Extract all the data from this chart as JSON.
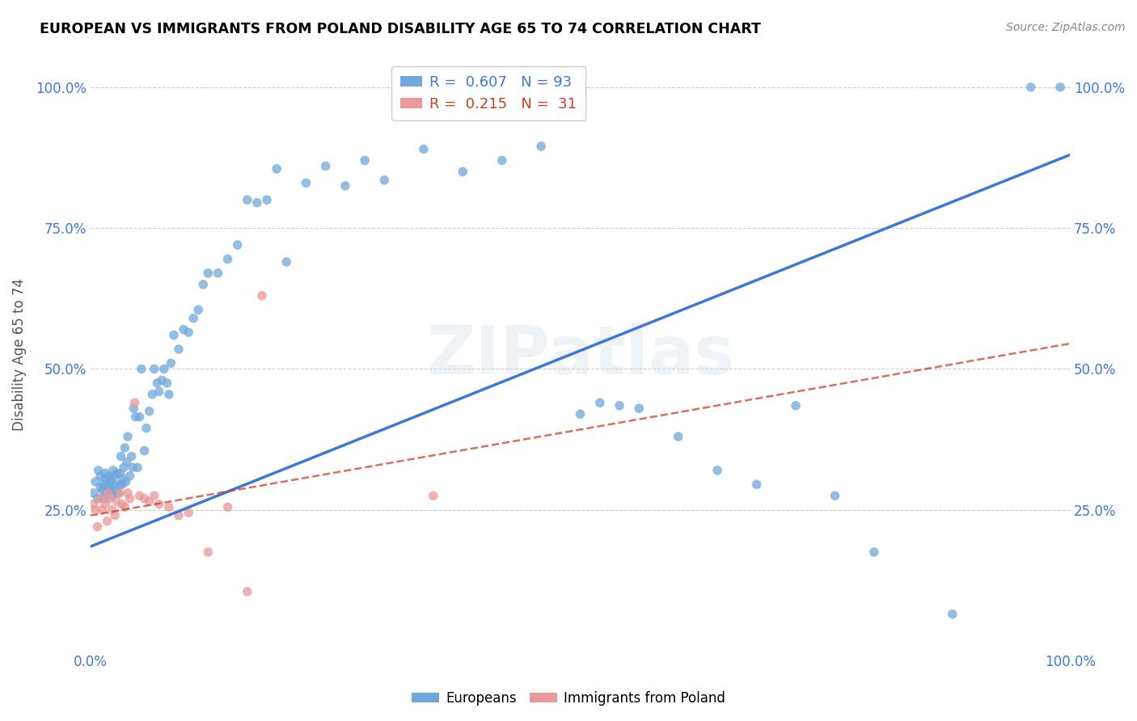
{
  "title": "EUROPEAN VS IMMIGRANTS FROM POLAND DISABILITY AGE 65 TO 74 CORRELATION CHART",
  "source": "Source: ZipAtlas.com",
  "ylabel": "Disability Age 65 to 74",
  "xlim": [
    0,
    1
  ],
  "ylim": [
    0,
    1.05
  ],
  "xticks": [
    0,
    0.25,
    0.5,
    0.75,
    1.0
  ],
  "xticklabels": [
    "0.0%",
    "",
    "",
    "",
    "100.0%"
  ],
  "yticks": [
    0.25,
    0.5,
    0.75,
    1.0
  ],
  "yticklabels": [
    "25.0%",
    "50.0%",
    "75.0%",
    "100.0%"
  ],
  "legend_labels": [
    "Europeans",
    "Immigrants from Poland"
  ],
  "blue_color": "#6fa8dc",
  "pink_color": "#ea9999",
  "trendline_blue_color": "#3c78d8",
  "trendline_pink_color": "#cc4125",
  "watermark": "ZIPatlas",
  "R_blue": 0.607,
  "N_blue": 93,
  "R_pink": 0.215,
  "N_pink": 31,
  "blue_x": [
    0.003,
    0.005,
    0.007,
    0.008,
    0.01,
    0.01,
    0.012,
    0.013,
    0.014,
    0.015,
    0.015,
    0.016,
    0.017,
    0.018,
    0.019,
    0.02,
    0.02,
    0.021,
    0.022,
    0.023,
    0.024,
    0.025,
    0.025,
    0.027,
    0.028,
    0.03,
    0.03,
    0.031,
    0.032,
    0.033,
    0.034,
    0.035,
    0.036,
    0.037,
    0.038,
    0.04,
    0.042,
    0.043,
    0.044,
    0.046,
    0.048,
    0.05,
    0.052,
    0.055,
    0.057,
    0.06,
    0.063,
    0.065,
    0.068,
    0.07,
    0.073,
    0.075,
    0.078,
    0.08,
    0.082,
    0.085,
    0.09,
    0.095,
    0.1,
    0.105,
    0.11,
    0.115,
    0.12,
    0.13,
    0.14,
    0.15,
    0.16,
    0.17,
    0.18,
    0.19,
    0.2,
    0.22,
    0.24,
    0.26,
    0.28,
    0.3,
    0.34,
    0.38,
    0.42,
    0.46,
    0.5,
    0.52,
    0.54,
    0.56,
    0.6,
    0.64,
    0.68,
    0.72,
    0.76,
    0.8,
    0.88,
    0.96,
    0.99
  ],
  "blue_y": [
    0.28,
    0.3,
    0.27,
    0.32,
    0.29,
    0.31,
    0.285,
    0.295,
    0.27,
    0.305,
    0.315,
    0.28,
    0.295,
    0.31,
    0.285,
    0.29,
    0.305,
    0.3,
    0.275,
    0.32,
    0.285,
    0.295,
    0.31,
    0.315,
    0.28,
    0.295,
    0.315,
    0.345,
    0.295,
    0.305,
    0.325,
    0.36,
    0.3,
    0.335,
    0.38,
    0.31,
    0.345,
    0.325,
    0.43,
    0.415,
    0.325,
    0.415,
    0.5,
    0.355,
    0.395,
    0.425,
    0.455,
    0.5,
    0.475,
    0.46,
    0.48,
    0.5,
    0.475,
    0.455,
    0.51,
    0.56,
    0.535,
    0.57,
    0.565,
    0.59,
    0.605,
    0.65,
    0.67,
    0.67,
    0.695,
    0.72,
    0.8,
    0.795,
    0.8,
    0.855,
    0.69,
    0.83,
    0.86,
    0.825,
    0.87,
    0.835,
    0.89,
    0.85,
    0.87,
    0.895,
    0.42,
    0.44,
    0.435,
    0.43,
    0.38,
    0.32,
    0.295,
    0.435,
    0.275,
    0.175,
    0.065,
    1.0,
    1.0
  ],
  "pink_x": [
    0.003,
    0.005,
    0.007,
    0.01,
    0.012,
    0.015,
    0.017,
    0.018,
    0.02,
    0.022,
    0.025,
    0.027,
    0.03,
    0.032,
    0.035,
    0.038,
    0.04,
    0.045,
    0.05,
    0.055,
    0.06,
    0.065,
    0.07,
    0.08,
    0.09,
    0.1,
    0.12,
    0.14,
    0.16,
    0.175,
    0.35
  ],
  "pink_y": [
    0.26,
    0.25,
    0.22,
    0.27,
    0.25,
    0.26,
    0.23,
    0.28,
    0.27,
    0.25,
    0.24,
    0.265,
    0.28,
    0.26,
    0.255,
    0.28,
    0.27,
    0.44,
    0.275,
    0.27,
    0.265,
    0.275,
    0.26,
    0.255,
    0.24,
    0.245,
    0.175,
    0.255,
    0.105,
    0.63,
    0.275
  ],
  "trendline_blue_x0": 0.0,
  "trendline_blue_y0": 0.185,
  "trendline_blue_x1": 1.0,
  "trendline_blue_y1": 0.88,
  "trendline_pink_x0": 0.0,
  "trendline_pink_y0": 0.24,
  "trendline_pink_x1": 1.0,
  "trendline_pink_y1": 0.545
}
